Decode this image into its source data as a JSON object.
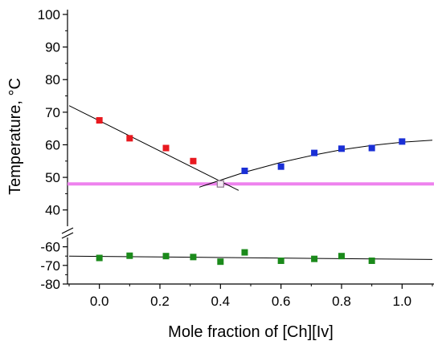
{
  "chart_data": {
    "type": "scatter",
    "title": "",
    "xlabel": "Mole fraction of [Ch][Iv]",
    "ylabel": "Temperature, °C",
    "xlim": [
      -0.1,
      1.1
    ],
    "x_ticks": [
      "0.0",
      "0.2",
      "0.4",
      "0.6",
      "0.8",
      "1.0"
    ],
    "y_axis_break": true,
    "y_upper_segment": {
      "ylim": [
        35,
        100
      ],
      "ticks": [
        "40",
        "50",
        "60",
        "70",
        "80",
        "90",
        "100"
      ]
    },
    "y_lower_segment": {
      "ylim": [
        -80,
        -55
      ],
      "ticks": [
        "-60",
        "-70",
        "-80"
      ]
    },
    "grid": false,
    "legend": "none",
    "series": [
      {
        "color": "#e8191f",
        "marker": "square",
        "x": [
          0.0,
          0.1,
          0.22,
          0.31
        ],
        "y": [
          67.5,
          62.0,
          59.0,
          55.0
        ]
      },
      {
        "color": "#1a2fd6",
        "marker": "square",
        "x": [
          0.48,
          0.6,
          0.71,
          0.8,
          0.9,
          1.0
        ],
        "y": [
          52.0,
          53.3,
          57.5,
          58.8,
          59.0,
          61.0
        ]
      },
      {
        "color": "#c8a8c8",
        "marker": "open-square",
        "x": [
          0.4
        ],
        "y": [
          48.0
        ]
      },
      {
        "color": "#1b8a1b",
        "marker": "square",
        "x": [
          0.0,
          0.1,
          0.22,
          0.31,
          0.4,
          0.48,
          0.6,
          0.71,
          0.8,
          0.9
        ],
        "y": [
          -66.0,
          -64.8,
          -65.0,
          -65.5,
          -68.0,
          -63.0,
          -67.5,
          -66.5,
          -65.0,
          -67.5
        ]
      }
    ],
    "fit_lines": [
      {
        "color": "#000000",
        "x": [
          -0.1,
          0.46
        ],
        "y": [
          72.0,
          46.0
        ]
      },
      {
        "color": "#000000",
        "type": "curve",
        "x": [
          0.33,
          0.48,
          0.6,
          0.71,
          0.8,
          0.9,
          1.0,
          1.1
        ],
        "y": [
          47.0,
          51.6,
          54.6,
          56.9,
          58.5,
          59.8,
          60.8,
          61.4
        ]
      },
      {
        "color": "#000000",
        "x": [
          -0.1,
          1.1
        ],
        "y": [
          -65.0,
          -66.8
        ]
      }
    ],
    "reference_line": {
      "color": "#ee82ee",
      "y": 48.0
    }
  }
}
